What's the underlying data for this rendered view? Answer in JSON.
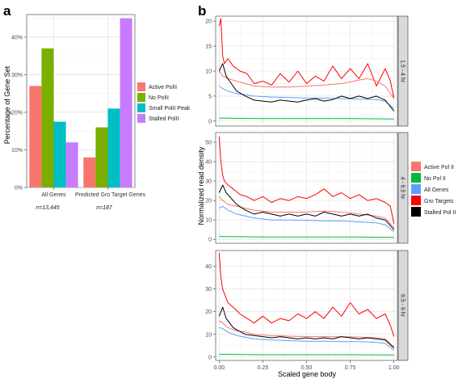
{
  "panel_a": {
    "label": "a",
    "ylabel": "Percentage of Gene Set",
    "ns": [
      "n=13,445",
      "n=187"
    ],
    "legend": [
      {
        "label": "Active PolII",
        "color": "#F8766D"
      },
      {
        "label": "No PolII",
        "color": "#7CAE00"
      },
      {
        "label": "Small PolII Peak",
        "color": "#00BFC4"
      },
      {
        "label": "Stalled PolII",
        "color": "#C77CFF"
      }
    ]
  },
  "panel_b": {
    "label": "b",
    "ylabel": "Normalized read density",
    "xlabel": "Scaled gene body",
    "legend": [
      {
        "label": "Active Pol II",
        "color": "#F8766D"
      },
      {
        "label": "No Pol II",
        "color": "#00BA38"
      },
      {
        "label": "All Genes",
        "color": "#619CFF"
      },
      {
        "label": "Gro Targets",
        "color": "#FF0000"
      },
      {
        "label": "Stalled Pol II",
        "color": "#000000"
      }
    ]
  },
  "chart_data": [
    {
      "type": "bar",
      "categories": [
        "All Genes",
        "Predicted Gro Target Genes"
      ],
      "series": [
        {
          "name": "Active PolII",
          "color": "#F8766D",
          "values": [
            27,
            8
          ]
        },
        {
          "name": "No PolII",
          "color": "#7CAE00",
          "values": [
            37,
            16
          ]
        },
        {
          "name": "Small PolII Peak",
          "color": "#00BFC4",
          "values": [
            17.5,
            21
          ]
        },
        {
          "name": "Stalled PolII",
          "color": "#C77CFF",
          "values": [
            12,
            45
          ]
        }
      ],
      "ylabel": "Percentage of Gene Set",
      "ylim": [
        0,
        46
      ],
      "yticks": [
        0,
        10,
        20,
        30,
        40
      ],
      "ytick_labels": [
        "0%",
        "10%",
        "20%",
        "30%",
        "40%"
      ],
      "grid": true
    },
    {
      "type": "line",
      "xlabel": "Scaled gene body",
      "ylabel": "Normalized read density",
      "xlim": [
        -0.02,
        1.02
      ],
      "xticks": [
        0,
        0.25,
        0.5,
        0.75,
        1
      ],
      "xtick_labels": [
        "0.00",
        "0.25",
        "0.50",
        "0.75",
        "1.00"
      ],
      "legend_position": "right",
      "grid": true,
      "facets": [
        {
          "strip": "1.5 - 4 hr",
          "ylim": [
            -1,
            21
          ],
          "yticks": [
            0,
            5,
            10,
            15,
            20
          ],
          "ytick_labels": [
            "0",
            "5",
            "10",
            "15",
            "20"
          ],
          "series": [
            {
              "name": "Gro Targets",
              "color": "#FF0000",
              "x": [
                0,
                0.01,
                0.02,
                0.03,
                0.05,
                0.08,
                0.12,
                0.16,
                0.2,
                0.25,
                0.3,
                0.35,
                0.4,
                0.45,
                0.5,
                0.55,
                0.6,
                0.65,
                0.7,
                0.75,
                0.8,
                0.85,
                0.9,
                0.95,
                0.98,
                1.0
              ],
              "y": [
                19,
                20.5,
                13,
                11.5,
                12.5,
                11,
                10,
                9.5,
                7.5,
                8,
                7.2,
                9.5,
                7.8,
                10,
                7.5,
                9,
                8,
                11,
                8.5,
                10.5,
                8.5,
                11.5,
                7,
                10.5,
                8,
                4.5
              ]
            },
            {
              "name": "Active Pol II",
              "color": "#F8766D",
              "x": [
                0,
                0.02,
                0.05,
                0.1,
                0.15,
                0.2,
                0.3,
                0.4,
                0.5,
                0.6,
                0.7,
                0.8,
                0.85,
                0.9,
                0.95,
                1.0
              ],
              "y": [
                10,
                9,
                8.5,
                8,
                7.5,
                7,
                6.8,
                6.8,
                7,
                7.2,
                7.5,
                8.2,
                8.5,
                8,
                7,
                4.5
              ]
            },
            {
              "name": "All Genes",
              "color": "#619CFF",
              "x": [
                0,
                0.02,
                0.05,
                0.1,
                0.2,
                0.3,
                0.4,
                0.5,
                0.6,
                0.7,
                0.8,
                0.9,
                0.95,
                1.0
              ],
              "y": [
                7,
                6.5,
                6,
                5.5,
                5,
                4.8,
                4.7,
                4.6,
                4.6,
                4.5,
                4.4,
                4.3,
                4,
                2.5
              ]
            },
            {
              "name": "Stalled Pol II",
              "color": "#000000",
              "x": [
                0,
                0.02,
                0.04,
                0.06,
                0.08,
                0.1,
                0.15,
                0.2,
                0.25,
                0.3,
                0.35,
                0.4,
                0.45,
                0.5,
                0.55,
                0.6,
                0.65,
                0.7,
                0.75,
                0.8,
                0.85,
                0.9,
                0.95,
                1.0
              ],
              "y": [
                10,
                11.5,
                9,
                8,
                7,
                6,
                5,
                4.2,
                4,
                3.8,
                4.2,
                4,
                3.8,
                4.2,
                4.5,
                4,
                4.3,
                5,
                4.5,
                5,
                4.5,
                5,
                4.2,
                2
              ]
            },
            {
              "name": "No Pol II",
              "color": "#00BA38",
              "x": [
                0,
                0.25,
                0.5,
                0.75,
                1.0
              ],
              "y": [
                0.6,
                0.5,
                0.5,
                0.5,
                0.4
              ]
            }
          ]
        },
        {
          "strip": "4 - 6.5 hr",
          "ylim": [
            -2,
            55
          ],
          "yticks": [
            0,
            10,
            20,
            30,
            40,
            50
          ],
          "ytick_labels": [
            "0",
            "10",
            "20",
            "30",
            "40",
            "50"
          ],
          "series": [
            {
              "name": "Gro Targets",
              "color": "#FF0000",
              "x": [
                0,
                0.01,
                0.02,
                0.03,
                0.05,
                0.08,
                0.12,
                0.16,
                0.2,
                0.25,
                0.3,
                0.35,
                0.4,
                0.45,
                0.5,
                0.55,
                0.6,
                0.65,
                0.7,
                0.75,
                0.8,
                0.85,
                0.9,
                0.95,
                0.98,
                1.0
              ],
              "y": [
                53,
                40,
                33,
                30,
                28,
                26,
                23,
                22,
                20,
                22,
                19,
                21,
                20,
                22,
                21,
                23,
                26,
                22,
                24,
                21,
                23,
                20,
                21,
                19,
                17,
                8
              ]
            },
            {
              "name": "Active Pol II",
              "color": "#F8766D",
              "x": [
                0,
                0.02,
                0.05,
                0.1,
                0.15,
                0.2,
                0.3,
                0.4,
                0.5,
                0.6,
                0.7,
                0.8,
                0.9,
                0.95,
                1.0
              ],
              "y": [
                22,
                20,
                18,
                17,
                16,
                15,
                14,
                14,
                14,
                14.5,
                14,
                13,
                12,
                11,
                6
              ]
            },
            {
              "name": "All Genes",
              "color": "#619CFF",
              "x": [
                0,
                0.02,
                0.05,
                0.1,
                0.2,
                0.3,
                0.4,
                0.5,
                0.6,
                0.7,
                0.8,
                0.9,
                0.95,
                1.0
              ],
              "y": [
                16,
                17,
                15,
                13,
                11,
                10,
                10,
                9.8,
                9.5,
                9.5,
                9,
                8.5,
                7.5,
                4
              ]
            },
            {
              "name": "Stalled Pol II",
              "color": "#000000",
              "x": [
                0,
                0.02,
                0.04,
                0.06,
                0.08,
                0.1,
                0.15,
                0.2,
                0.25,
                0.3,
                0.35,
                0.4,
                0.45,
                0.5,
                0.55,
                0.6,
                0.65,
                0.7,
                0.75,
                0.8,
                0.85,
                0.9,
                0.95,
                1.0
              ],
              "y": [
                24,
                28,
                24,
                22,
                20,
                18,
                15,
                13,
                14,
                13,
                12,
                13,
                12,
                13,
                12,
                14,
                13,
                12,
                13,
                12,
                13,
                11,
                10,
                5
              ]
            },
            {
              "name": "No Pol II",
              "color": "#00BA38",
              "x": [
                0,
                0.25,
                0.5,
                0.75,
                1.0
              ],
              "y": [
                1.5,
                1.2,
                1.2,
                1.2,
                1.0
              ]
            }
          ]
        },
        {
          "strip": "6.5 - 9 hr",
          "ylim": [
            -1.5,
            47
          ],
          "yticks": [
            0,
            10,
            20,
            30,
            40
          ],
          "ytick_labels": [
            "0",
            "10",
            "20",
            "30",
            "40"
          ],
          "series": [
            {
              "name": "Gro Targets",
              "color": "#FF0000",
              "x": [
                0,
                0.01,
                0.02,
                0.03,
                0.05,
                0.08,
                0.12,
                0.16,
                0.2,
                0.25,
                0.3,
                0.35,
                0.4,
                0.45,
                0.5,
                0.55,
                0.6,
                0.65,
                0.7,
                0.75,
                0.8,
                0.85,
                0.9,
                0.95,
                0.98,
                1.0
              ],
              "y": [
                46,
                35,
                30,
                28,
                24,
                22,
                19,
                17,
                15,
                18,
                15,
                17,
                16,
                19,
                17,
                20,
                17,
                22,
                18,
                24,
                19,
                21,
                17,
                19,
                14,
                9
              ]
            },
            {
              "name": "Active Pol II",
              "color": "#F8766D",
              "x": [
                0,
                0.02,
                0.05,
                0.1,
                0.15,
                0.2,
                0.3,
                0.4,
                0.5,
                0.6,
                0.7,
                0.8,
                0.9,
                0.95,
                1.0
              ],
              "y": [
                16,
                15,
                13,
                11.5,
                11,
                10,
                9.5,
                9.2,
                9,
                9,
                9,
                8.8,
                8.5,
                8,
                4.5
              ]
            },
            {
              "name": "All Genes",
              "color": "#619CFF",
              "x": [
                0,
                0.02,
                0.05,
                0.1,
                0.2,
                0.3,
                0.4,
                0.5,
                0.6,
                0.7,
                0.8,
                0.9,
                0.95,
                1.0
              ],
              "y": [
                13,
                12.5,
                11,
                9.5,
                8,
                7.5,
                7.2,
                7,
                7,
                6.8,
                6.8,
                6.5,
                6,
                3
              ]
            },
            {
              "name": "Stalled Pol II",
              "color": "#000000",
              "x": [
                0,
                0.02,
                0.04,
                0.06,
                0.08,
                0.1,
                0.15,
                0.2,
                0.25,
                0.3,
                0.35,
                0.4,
                0.45,
                0.5,
                0.55,
                0.6,
                0.65,
                0.7,
                0.75,
                0.8,
                0.85,
                0.9,
                0.95,
                1.0
              ],
              "y": [
                18,
                22,
                17,
                15,
                13,
                12,
                10,
                9.5,
                9,
                8.5,
                9,
                8.5,
                8,
                8.5,
                8,
                8.5,
                8,
                9,
                8.5,
                8,
                8.5,
                8,
                7.5,
                4
              ]
            },
            {
              "name": "No Pol II",
              "color": "#00BA38",
              "x": [
                0,
                0.25,
                0.5,
                0.75,
                1.0
              ],
              "y": [
                1.2,
                1.0,
                1.0,
                1.0,
                0.9
              ]
            }
          ]
        }
      ]
    }
  ]
}
